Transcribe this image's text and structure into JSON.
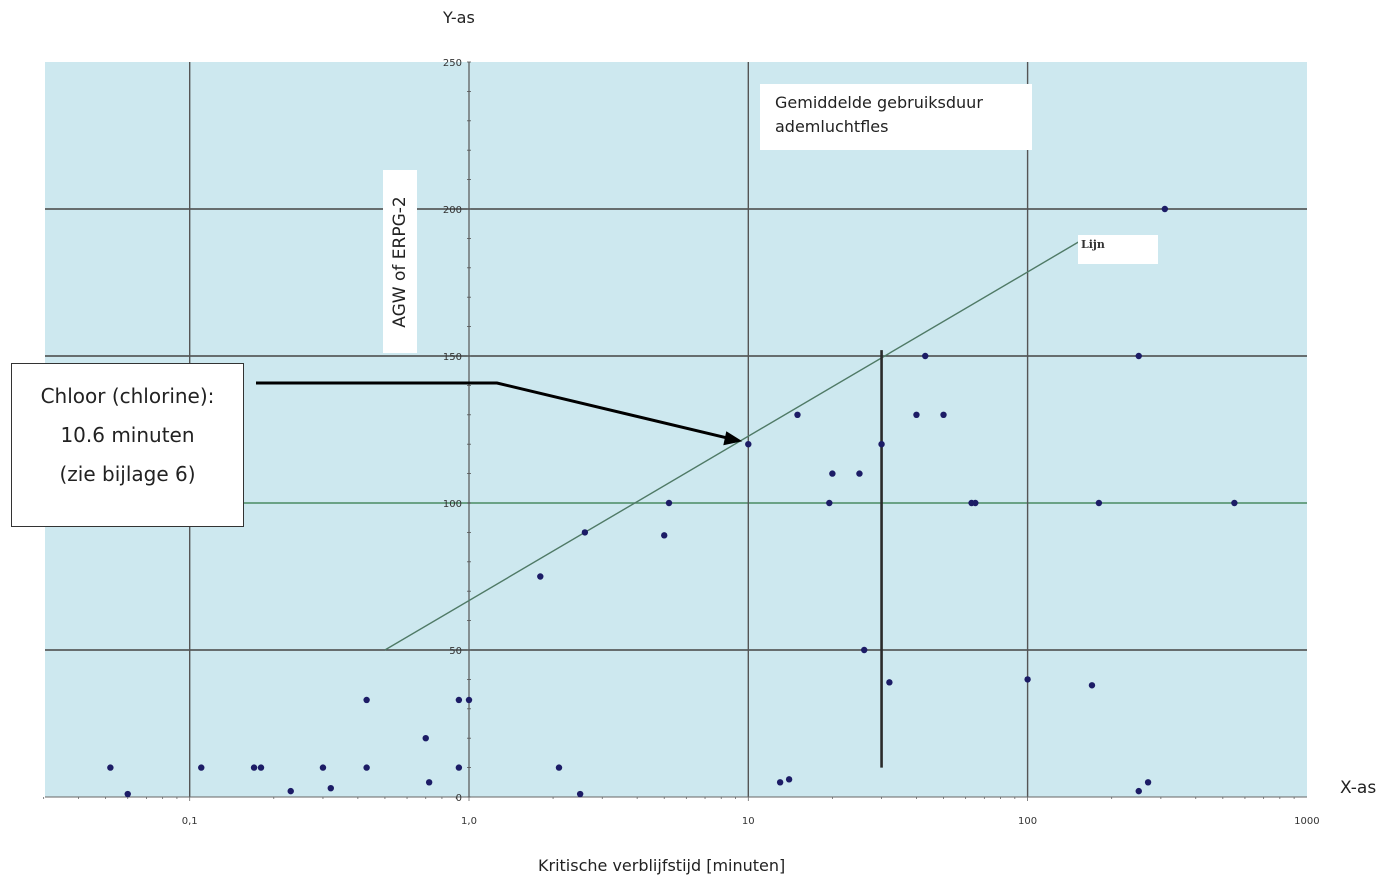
{
  "chart_data": {
    "type": "scatter",
    "x_scale": "log",
    "xlim": [
      0.03,
      1000
    ],
    "ylim": [
      0,
      250
    ],
    "y_axis_title_top": "Y-as",
    "x_axis_title_end": "X-as",
    "xlabel": "Kritische verblijfstijd [minuten]",
    "ylabel": "AGW of ERPG-2",
    "x_tick_labels": [
      {
        "value": 0.1,
        "label": "0,1"
      },
      {
        "value": 1,
        "label": "1,0"
      },
      {
        "value": 10,
        "label": "10"
      },
      {
        "value": 100,
        "label": "100"
      },
      {
        "value": 1000,
        "label": "1000"
      }
    ],
    "y_tick_labels": [
      {
        "value": 0,
        "label": "0"
      },
      {
        "value": 50,
        "label": "50"
      },
      {
        "value": 100,
        "label": "100"
      },
      {
        "value": 150,
        "label": "150"
      },
      {
        "value": 200,
        "label": "200"
      },
      {
        "value": 250,
        "label": "250"
      }
    ],
    "grid": true,
    "colors": {
      "plot_background": "#cde8ef",
      "point": "#1c1c66",
      "line": "#4f7a66",
      "grid_major": "#444444"
    },
    "series": [
      {
        "points": [
          [
            0.052,
            10
          ],
          [
            0.06,
            1
          ],
          [
            0.11,
            10
          ],
          [
            0.17,
            10
          ],
          [
            0.18,
            10
          ],
          [
            0.23,
            2
          ],
          [
            0.3,
            10
          ],
          [
            0.32,
            3
          ],
          [
            0.43,
            10
          ],
          [
            0.43,
            33
          ],
          [
            0.7,
            20
          ],
          [
            0.72,
            5
          ],
          [
            0.92,
            10
          ],
          [
            0.92,
            33
          ],
          [
            1.0,
            33
          ],
          [
            1.8,
            75
          ],
          [
            2.1,
            10
          ],
          [
            2.5,
            1
          ],
          [
            2.6,
            90
          ],
          [
            5.0,
            89
          ],
          [
            5.2,
            100
          ],
          [
            10.0,
            120
          ],
          [
            13.0,
            5
          ],
          [
            14.0,
            6
          ],
          [
            15.0,
            130
          ],
          [
            19.5,
            100
          ],
          [
            20.0,
            110
          ],
          [
            25.0,
            110
          ],
          [
            26.0,
            50
          ],
          [
            30.0,
            120
          ],
          [
            32.0,
            39
          ],
          [
            40.0,
            130
          ],
          [
            43.0,
            150
          ],
          [
            50.0,
            130
          ],
          [
            63.0,
            100
          ],
          [
            65.0,
            100
          ],
          [
            100.0,
            40
          ],
          [
            170.0,
            38
          ],
          [
            180.0,
            100
          ],
          [
            250.0,
            2
          ],
          [
            250.0,
            150
          ],
          [
            270.0,
            5
          ],
          [
            310.0,
            200
          ],
          [
            550.0,
            100
          ]
        ]
      }
    ],
    "trend_line": {
      "label": "Lijn",
      "from": [
        0.5,
        50
      ],
      "to": [
        160,
        190
      ]
    },
    "reference_line": {
      "x": 30,
      "y_from": 10,
      "y_to": 152,
      "label": [
        "Gemiddelde gebruiksduur",
        "ademluchtfles"
      ]
    },
    "annotation": {
      "lines": [
        "Chloor (chlorine):",
        "10.6 minuten",
        "(zie bijlage 6)"
      ],
      "target": [
        10,
        120
      ]
    }
  }
}
